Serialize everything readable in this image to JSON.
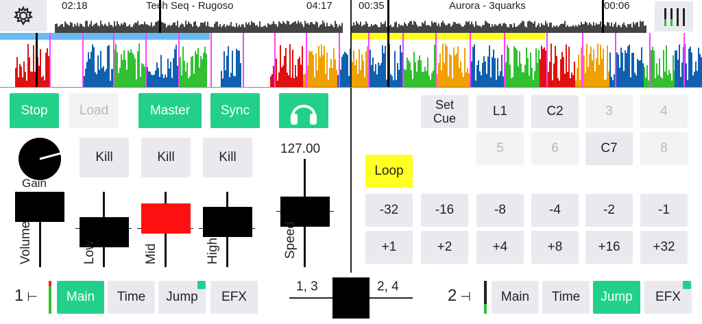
{
  "deck1": {
    "elapsed": "02:18",
    "title": "Tech Seq - Rugoso",
    "remaining": "04:17",
    "number": "1",
    "tabs": [
      "Main",
      "Time",
      "Jump",
      "EFX"
    ]
  },
  "deck2": {
    "elapsed": "00:35",
    "title": "Aurora - 3quarks",
    "remaining": "00:06",
    "number": "2",
    "tabs": [
      "Main",
      "Time",
      "Jump",
      "EFX"
    ]
  },
  "controls": {
    "stop": "Stop",
    "load": "Load",
    "master": "Master",
    "sync": "Sync",
    "kill": "Kill",
    "gain": "Gain",
    "bpm": "127.00",
    "volume": "Volume",
    "low": "Low",
    "mid": "Mid",
    "high": "High",
    "speed": "Speed"
  },
  "cues": {
    "set_cue": "Set Cue",
    "pads": [
      "L1",
      "C2",
      "3",
      "4",
      "5",
      "6",
      "C7",
      "8"
    ],
    "loop": "Loop",
    "jumps_back": [
      "-32",
      "-16",
      "-8",
      "-4",
      "-2",
      "-1"
    ],
    "jumps_fwd": [
      "+1",
      "+2",
      "+4",
      "+8",
      "+16",
      "+32"
    ]
  },
  "crossfader": {
    "left_label": "1, 3",
    "right_label": "2, 4"
  },
  "colors": {
    "accent_green": "#22d08a",
    "loop_yellow": "#ffff22",
    "mid_red": "#ff1010",
    "wave_red": "#e01010",
    "wave_blue": "#1060b0",
    "wave_green": "#30c030",
    "wave_orange": "#f0a000",
    "progress_blue": "#6ab8f0"
  },
  "icons": {
    "settings": "gear-icon",
    "headphones": "headphones-icon",
    "meters": "level-meter-icon"
  }
}
